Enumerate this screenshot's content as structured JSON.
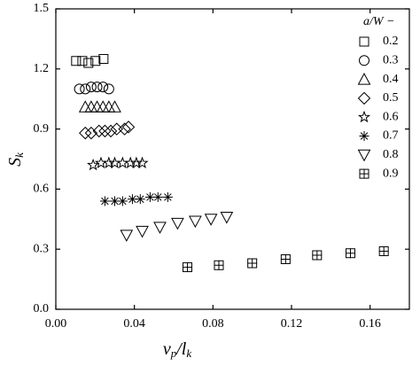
{
  "chart_data": {
    "type": "scatter",
    "xlabel": [
      "v",
      "p",
      "/l",
      "k"
    ],
    "ylabel": [
      "S",
      "k"
    ],
    "legend_title": "a/W −",
    "legend": "upper right",
    "xlim": [
      0,
      0.18
    ],
    "xticks": [
      {
        "value": 0,
        "label": "0.00"
      },
      0.04,
      0.08,
      0.12,
      0.16
    ],
    "ylim": [
      0,
      1.5
    ],
    "yticks": [
      {
        "value": 0,
        "label": "0.0"
      },
      0.3,
      0.6,
      0.9,
      1.2,
      1.5
    ],
    "series": [
      {
        "name": "0.2",
        "marker": "square",
        "color": "#000000",
        "x": [
          0.0103,
          0.0135,
          0.0166,
          0.0202,
          0.0243
        ],
        "values": [
          1.24,
          1.24,
          1.23,
          1.24,
          1.25
        ]
      },
      {
        "name": "0.3",
        "marker": "circle",
        "color": "#000000",
        "x": [
          0.012,
          0.015,
          0.018,
          0.021,
          0.024,
          0.027
        ],
        "values": [
          1.1,
          1.1,
          1.11,
          1.11,
          1.11,
          1.1
        ]
      },
      {
        "name": "0.4",
        "marker": "triangle-up",
        "color": "#000000",
        "x": [
          0.015,
          0.018,
          0.021,
          0.024,
          0.027,
          0.03
        ],
        "values": [
          1.01,
          1.01,
          1.01,
          1.01,
          1.01,
          1.01
        ]
      },
      {
        "name": "0.5",
        "marker": "diamond",
        "color": "#000000",
        "x": [
          0.015,
          0.018,
          0.022,
          0.025,
          0.028,
          0.031,
          0.035,
          0.037
        ],
        "values": [
          0.88,
          0.88,
          0.89,
          0.89,
          0.89,
          0.9,
          0.9,
          0.91
        ]
      },
      {
        "name": "0.6",
        "marker": "star",
        "color": "#000000",
        "x": [
          0.019,
          0.023,
          0.027,
          0.03,
          0.034,
          0.038,
          0.041,
          0.044
        ],
        "values": [
          0.72,
          0.73,
          0.73,
          0.73,
          0.73,
          0.73,
          0.73,
          0.73
        ]
      },
      {
        "name": "0.7",
        "marker": "asterisk",
        "color": "#000000",
        "x": [
          0.025,
          0.03,
          0.034,
          0.039,
          0.043,
          0.048,
          0.052,
          0.057
        ],
        "values": [
          0.54,
          0.54,
          0.54,
          0.55,
          0.55,
          0.56,
          0.56,
          0.56
        ]
      },
      {
        "name": "0.8",
        "marker": "triangle-down",
        "color": "#000000",
        "x": [
          0.036,
          0.044,
          0.053,
          0.062,
          0.071,
          0.079,
          0.087
        ],
        "values": [
          0.37,
          0.39,
          0.41,
          0.43,
          0.44,
          0.45,
          0.46
        ]
      },
      {
        "name": "0.9",
        "marker": "square-plus",
        "color": "#000000",
        "x": [
          0.067,
          0.083,
          0.1,
          0.117,
          0.133,
          0.15,
          0.167
        ],
        "values": [
          0.21,
          0.22,
          0.23,
          0.25,
          0.27,
          0.28,
          0.29
        ]
      }
    ]
  }
}
